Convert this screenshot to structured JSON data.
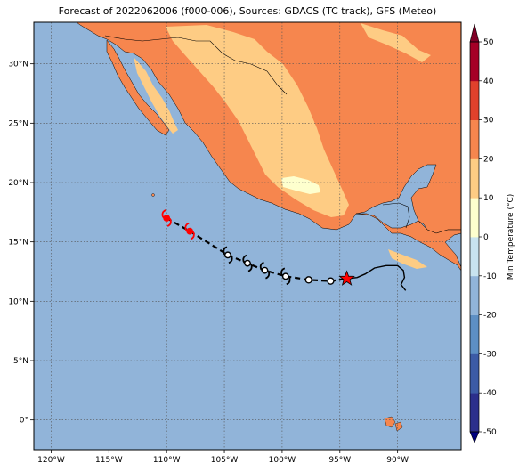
{
  "title": "Forecast of 2022062006 (f000-006), Sources: GDACS (TC track), GFS (Meteo)",
  "map": {
    "lon_range": [
      -121.5,
      -84.5
    ],
    "lat_range": [
      -2.5,
      33.5
    ],
    "lon_ticks": [
      {
        "value": -120,
        "label": "120°W"
      },
      {
        "value": -115,
        "label": "115°W"
      },
      {
        "value": -110,
        "label": "110°W"
      },
      {
        "value": -105,
        "label": "105°W"
      },
      {
        "value": -100,
        "label": "100°W"
      },
      {
        "value": -95,
        "label": "95°W"
      },
      {
        "value": -90,
        "label": "90°W"
      }
    ],
    "lat_ticks": [
      {
        "value": 0,
        "label": "0°"
      },
      {
        "value": 5,
        "label": "5°N"
      },
      {
        "value": 10,
        "label": "10°N"
      },
      {
        "value": 15,
        "label": "15°N"
      },
      {
        "value": 20,
        "label": "20°N"
      },
      {
        "value": 25,
        "label": "25°N"
      },
      {
        "value": 30,
        "label": "30°N"
      }
    ],
    "gridlines": true,
    "ocean_color": "#91b4d9"
  },
  "colorbar": {
    "label": "Min Temperature (°C)",
    "ticks": [
      "-50",
      "-40",
      "-30",
      "-20",
      "-10",
      "0",
      "10",
      "20",
      "30",
      "40",
      "50"
    ],
    "colors": [
      "#2c2f8c",
      "#3c5ba6",
      "#5d8fc4",
      "#91b4d9",
      "#c8e3ef",
      "#feffce",
      "#fecc84",
      "#f6864e",
      "#e0412c",
      "#a50026"
    ]
  },
  "track": {
    "past_points": [
      {
        "lon": -110.0,
        "lat": 17.0,
        "symbol": "hurricane-red"
      },
      {
        "lon": -108.0,
        "lat": 15.9,
        "symbol": "hurricane-red"
      },
      {
        "lon": -104.7,
        "lat": 13.9,
        "symbol": "hurricane"
      },
      {
        "lon": -103.0,
        "lat": 13.2,
        "symbol": "hurricane"
      },
      {
        "lon": -101.5,
        "lat": 12.6,
        "symbol": "hurricane"
      },
      {
        "lon": -99.7,
        "lat": 12.1,
        "symbol": "hurricane"
      },
      {
        "lon": -97.7,
        "lat": 11.8,
        "symbol": "circle"
      },
      {
        "lon": -95.8,
        "lat": 11.7,
        "symbol": "circle"
      }
    ],
    "current": {
      "lon": -94.4,
      "lat": 11.9,
      "symbol": "star"
    },
    "observed_track": [
      [
        -94.4,
        11.9
      ],
      [
        -93.5,
        12.0
      ],
      [
        -92.8,
        12.3
      ],
      [
        -92.0,
        12.8
      ],
      [
        -91.0,
        13.0
      ],
      [
        -90.0,
        13.0
      ],
      [
        -89.5,
        12.6
      ],
      [
        -89.4,
        12.0
      ],
      [
        -89.7,
        11.4
      ],
      [
        -89.3,
        10.9
      ]
    ]
  }
}
